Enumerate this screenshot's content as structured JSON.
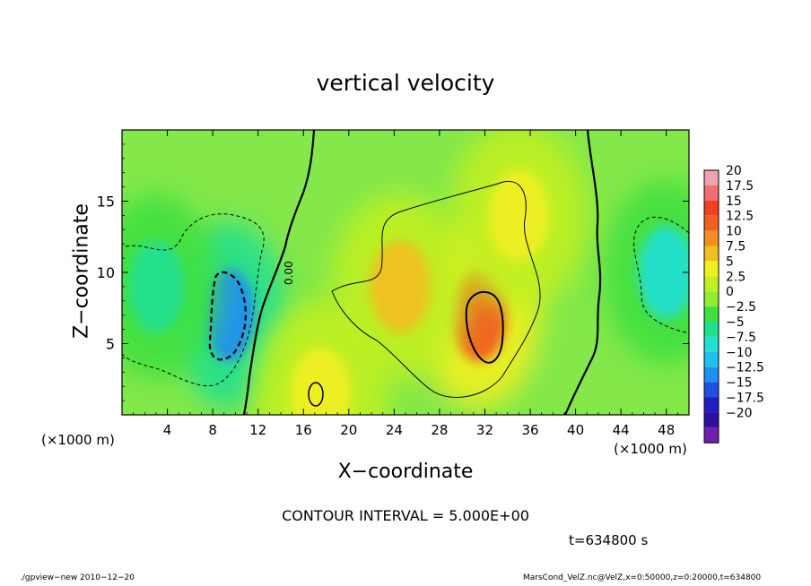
{
  "chart_data": {
    "type": "heatmap",
    "title": "vertical velocity",
    "xlabel": "X−coordinate",
    "ylabel": "Z−coordinate",
    "x_unit": "(×1000 m)",
    "y_unit": "(×1000 m)",
    "xlim": [
      0,
      50
    ],
    "ylim": [
      0,
      20
    ],
    "x_ticks": [
      4,
      8,
      12,
      16,
      20,
      24,
      28,
      32,
      36,
      40,
      44,
      48
    ],
    "y_ticks": [
      5,
      10,
      15
    ],
    "colorbar_levels": [
      "20",
      "17.5",
      "15",
      "12.5",
      "10",
      "7.5",
      "5",
      "2.5",
      "0",
      "−2.5",
      "−5",
      "−7.5",
      "−10",
      "−12.5",
      "−15",
      "−17.5",
      "−20"
    ],
    "colorbar_colors": [
      "#f0a0b0",
      "#f07070",
      "#f04020",
      "#f06020",
      "#f09020",
      "#f0c020",
      "#f0f020",
      "#c0f020",
      "#90ee30",
      "#40e040",
      "#20e090",
      "#20e0d0",
      "#20c0f0",
      "#2090f0",
      "#2050e0",
      "#2020c0",
      "#3010a0",
      "#7020b0"
    ],
    "contour_interval": "CONTOUR INTERVAL = 5.000E+00",
    "contour_label": "0.00",
    "time_label": "t=634800 s",
    "features": [
      {
        "sign": "negative",
        "x": 9.5,
        "z": 7,
        "peak": -12
      },
      {
        "sign": "negative",
        "x": 3,
        "z": 9,
        "peak": -6
      },
      {
        "sign": "negative",
        "x": 48,
        "z": 10,
        "peak": -7
      },
      {
        "sign": "positive",
        "x": 31.5,
        "z": 7,
        "peak": 12
      },
      {
        "sign": "positive",
        "x": 24.5,
        "z": 9,
        "peak": 7
      },
      {
        "sign": "positive",
        "x": 35,
        "z": 14,
        "peak": 5
      },
      {
        "sign": "positive",
        "x": 17.5,
        "z": 1.5,
        "peak": 5
      }
    ]
  },
  "footer": {
    "left": "./gpview−new  2010−12−20",
    "right": "MarsCond_VelZ.nc@VelZ,x=0:50000,z=0:20000,t=634800"
  }
}
